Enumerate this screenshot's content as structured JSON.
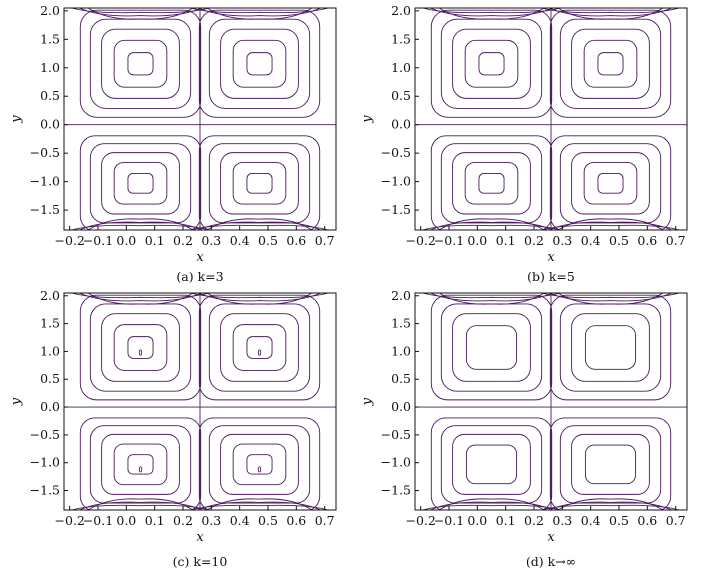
{
  "figure": {
    "line_color": "#4a1a5c",
    "panels": [
      {
        "caption": "(a) k=3",
        "chart_data": {
          "type": "contour",
          "xlabel": "x",
          "ylabel": "y",
          "xticks": [
            "−0.2",
            "−0.1",
            "0.0",
            "0.1",
            "0.2",
            "0.3",
            "0.4",
            "0.5",
            "0.6",
            "0.7"
          ],
          "yticks": [
            "2.0",
            "1.5",
            "1.0",
            "0.5",
            "0.0",
            "−0.5",
            "−1.0",
            "−1.5"
          ],
          "xlim": [
            -0.22,
            0.74
          ],
          "ylim": [
            -1.85,
            2.05
          ],
          "vortex_centers": [
            [
              0.05,
              1.07
            ],
            [
              0.47,
              1.07
            ],
            [
              0.05,
              -1.03
            ],
            [
              0.47,
              -1.03
            ]
          ],
          "levels": 5
        }
      },
      {
        "caption": "(b) k=5",
        "chart_data": {
          "type": "contour",
          "xlabel": "x",
          "ylabel": "y",
          "xticks": [
            "−0.2",
            "−0.1",
            "0.0",
            "0.1",
            "0.2",
            "0.3",
            "0.4",
            "0.5",
            "0.6",
            "0.7"
          ],
          "yticks": [
            "2.0",
            "1.5",
            "1.0",
            "0.5",
            "0.0",
            "−0.5",
            "−1.0",
            "−1.5"
          ],
          "xlim": [
            -0.22,
            0.74
          ],
          "ylim": [
            -1.85,
            2.05
          ],
          "vortex_centers": [
            [
              0.05,
              1.07
            ],
            [
              0.47,
              1.07
            ],
            [
              0.05,
              -1.03
            ],
            [
              0.47,
              -1.03
            ]
          ],
          "levels": 5
        }
      },
      {
        "caption": "(c) k=10",
        "chart_data": {
          "type": "contour",
          "xlabel": "x",
          "ylabel": "y",
          "xticks": [
            "−0.2",
            "−0.1",
            "0.0",
            "0.1",
            "0.2",
            "0.3",
            "0.4",
            "0.5",
            "0.6",
            "0.7"
          ],
          "yticks": [
            "2.0",
            "1.5",
            "1.0",
            "0.5",
            "0.0",
            "−0.5",
            "−1.0",
            "−1.5"
          ],
          "xlim": [
            -0.22,
            0.74
          ],
          "ylim": [
            -1.85,
            2.05
          ],
          "vortex_centers": [
            [
              0.05,
              1.07
            ],
            [
              0.47,
              1.07
            ],
            [
              0.05,
              -1.03
            ],
            [
              0.47,
              -1.03
            ]
          ],
          "levels": 5
        }
      },
      {
        "caption": "(d) k→∞",
        "chart_data": {
          "type": "contour",
          "xlabel": "x",
          "ylabel": "y",
          "xticks": [
            "−0.2",
            "−0.1",
            "0.0",
            "0.1",
            "0.2",
            "0.3",
            "0.4",
            "0.5",
            "0.6",
            "0.7"
          ],
          "yticks": [
            "2.0",
            "1.5",
            "1.0",
            "0.5",
            "0.0",
            "−0.5",
            "−1.0",
            "−1.5"
          ],
          "xlim": [
            -0.22,
            0.74
          ],
          "ylim": [
            -1.85,
            2.05
          ],
          "vortex_centers": [
            [
              0.05,
              1.07
            ],
            [
              0.47,
              1.07
            ],
            [
              0.05,
              -1.03
            ],
            [
              0.47,
              -1.03
            ]
          ],
          "levels": 4
        }
      }
    ]
  }
}
